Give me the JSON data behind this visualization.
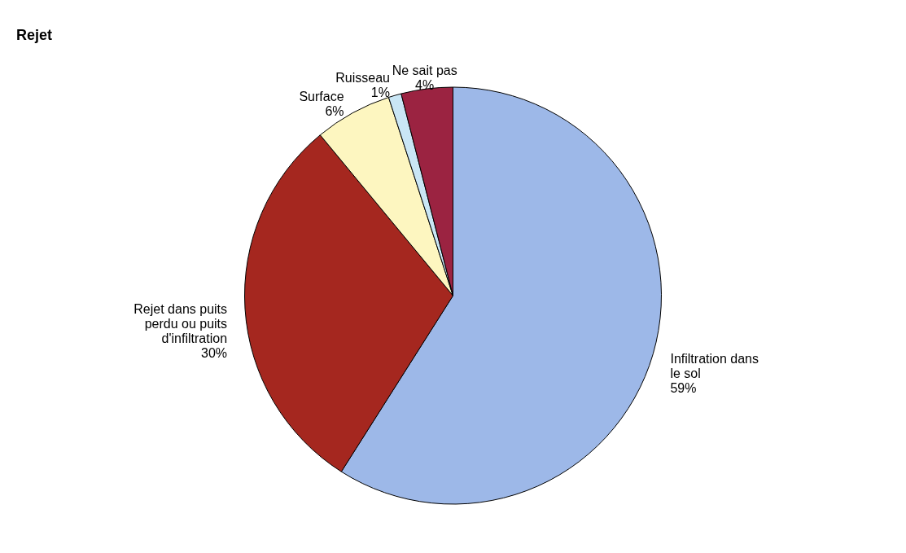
{
  "chart_data": {
    "type": "pie",
    "title": "Rejet",
    "categories": [
      "Infiltration dans le sol",
      "Rejet dans puits perdu ou puits d'infiltration",
      "Surface",
      "Ruisseau",
      "Ne sait pas"
    ],
    "values": [
      59,
      30,
      6,
      1,
      4
    ],
    "colors": [
      "#9db8e8",
      "#a5271f",
      "#fdf6c0",
      "#c9e6f5",
      "#9b2341"
    ],
    "value_labels": [
      "59%",
      "30%",
      "6%",
      "1%",
      "4%"
    ],
    "legend": false
  }
}
